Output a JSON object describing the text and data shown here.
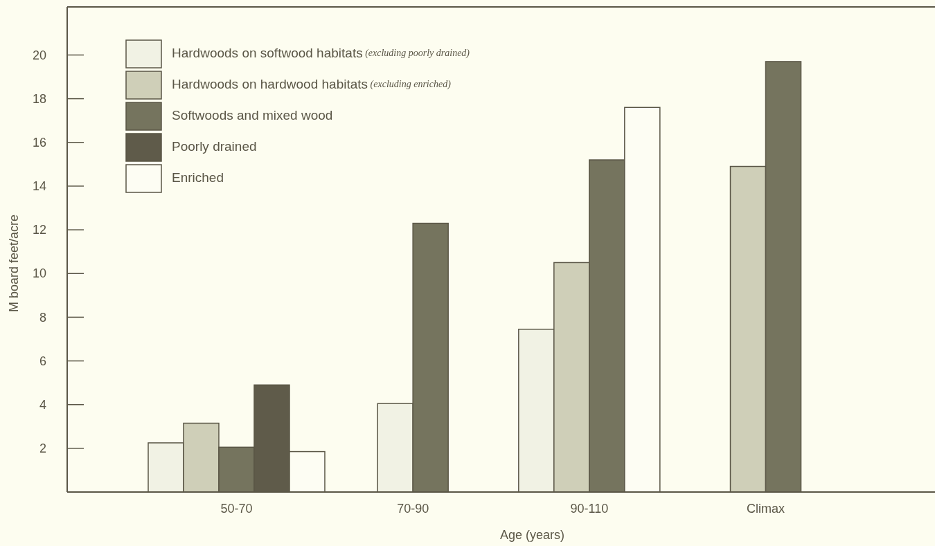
{
  "chart_data": {
    "type": "bar",
    "xlabel": "Age (years)",
    "ylabel": "M board feet/acre",
    "categories": [
      "50-70",
      "70-90",
      "90-110",
      "Climax"
    ],
    "series": [
      {
        "name": "Hardwoods on softwood habitats (excluding poorly drained)",
        "color": "#f1f2e4",
        "values": [
          2.25,
          4.05,
          7.45,
          null
        ]
      },
      {
        "name": "Hardwoods on hardwood habitats (excluding enriched)",
        "color": "#cfcfb8",
        "values": [
          3.15,
          null,
          10.5,
          14.9
        ]
      },
      {
        "name": "Softwoods and mixed wood",
        "color": "#75745e",
        "values": [
          2.05,
          12.3,
          15.2,
          19.7
        ]
      },
      {
        "name": "Poorly drained",
        "color": "#5f5b4a",
        "values": [
          4.9,
          null,
          null,
          null
        ]
      },
      {
        "name": "Enriched",
        "color": "#fdfdf3",
        "values": [
          1.85,
          null,
          17.6,
          null
        ]
      }
    ],
    "ylim": [
      0,
      22.2
    ],
    "yticks": [
      2,
      4,
      6,
      8,
      10,
      12,
      14,
      16,
      18,
      20
    ],
    "grid": false,
    "legend": "top left"
  }
}
